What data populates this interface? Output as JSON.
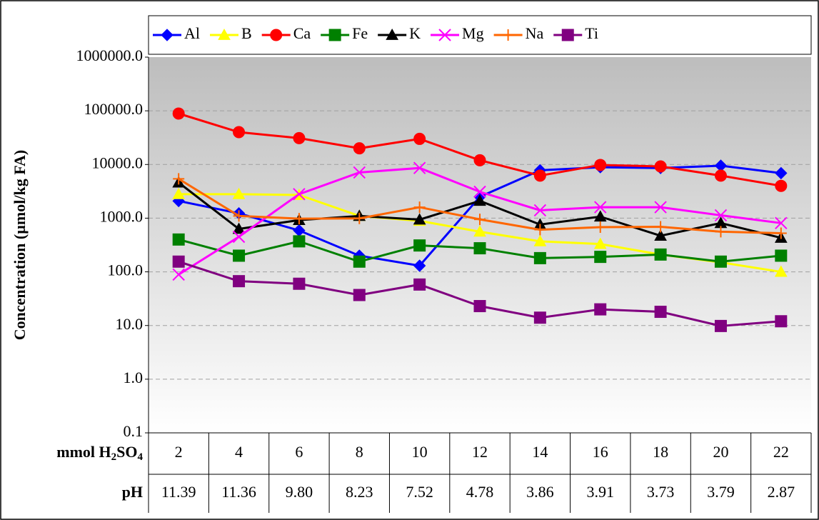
{
  "chart_data": {
    "type": "line",
    "y_label": "Concentration (µmol/kg FA)",
    "x_label": "mmol H2SO4",
    "categories": [
      "2",
      "4",
      "6",
      "8",
      "10",
      "12",
      "14",
      "16",
      "18",
      "20",
      "22"
    ],
    "ph_label": "pH",
    "ph_values": [
      "11.39",
      "11.36",
      "9.80",
      "8.23",
      "7.52",
      "4.78",
      "3.86",
      "3.91",
      "3.73",
      "3.79",
      "2.87"
    ],
    "y_scale": "log",
    "ylim": [
      0.1,
      1000000
    ],
    "yticks": [
      {
        "value": 0.1,
        "label": "0.1"
      },
      {
        "value": 1,
        "label": "1.0"
      },
      {
        "value": 10,
        "label": "10.0"
      },
      {
        "value": 100,
        "label": "100.0"
      },
      {
        "value": 1000,
        "label": "1000.0"
      },
      {
        "value": 10000,
        "label": "10000.0"
      },
      {
        "value": 100000,
        "label": "100000.0"
      },
      {
        "value": 1000000,
        "label": "1000000.0"
      }
    ],
    "grid": true,
    "legend": "top",
    "series": [
      {
        "name": "Al",
        "color": "#0000ff",
        "marker": "diamond",
        "values": [
          2090,
          1230,
          590,
          200,
          130,
          2500,
          7800,
          8900,
          8600,
          9500,
          6900
        ]
      },
      {
        "name": "B",
        "color": "#ffff00",
        "marker": "triangle",
        "values": [
          2800,
          2800,
          2700,
          1100,
          890,
          560,
          370,
          330,
          210,
          150,
          100
        ]
      },
      {
        "name": "Ca",
        "color": "#ff0000",
        "marker": "circle",
        "values": [
          89000,
          40000,
          31000,
          20000,
          30000,
          12000,
          6200,
          9800,
          9200,
          6200,
          4000
        ]
      },
      {
        "name": "Fe",
        "color": "#008000",
        "marker": "square",
        "values": [
          400,
          200,
          370,
          155,
          310,
          275,
          180,
          190,
          210,
          155,
          200
        ]
      },
      {
        "name": "K",
        "color": "#000000",
        "marker": "triangle",
        "values": [
          4600,
          630,
          920,
          1100,
          940,
          2100,
          760,
          1070,
          470,
          810,
          430
        ]
      },
      {
        "name": "Mg",
        "color": "#ff00ff",
        "marker": "x",
        "values": [
          89,
          450,
          2800,
          7100,
          8600,
          3100,
          1400,
          1600,
          1600,
          1130,
          810
        ]
      },
      {
        "name": "Na",
        "color": "#ff6600",
        "marker": "plus",
        "values": [
          5400,
          1100,
          980,
          990,
          1600,
          950,
          610,
          680,
          690,
          560,
          525
        ]
      },
      {
        "name": "Ti",
        "color": "#800080",
        "marker": "square",
        "values": [
          155,
          67,
          60,
          37,
          58,
          23,
          14,
          20,
          18,
          9.8,
          12
        ]
      }
    ]
  }
}
